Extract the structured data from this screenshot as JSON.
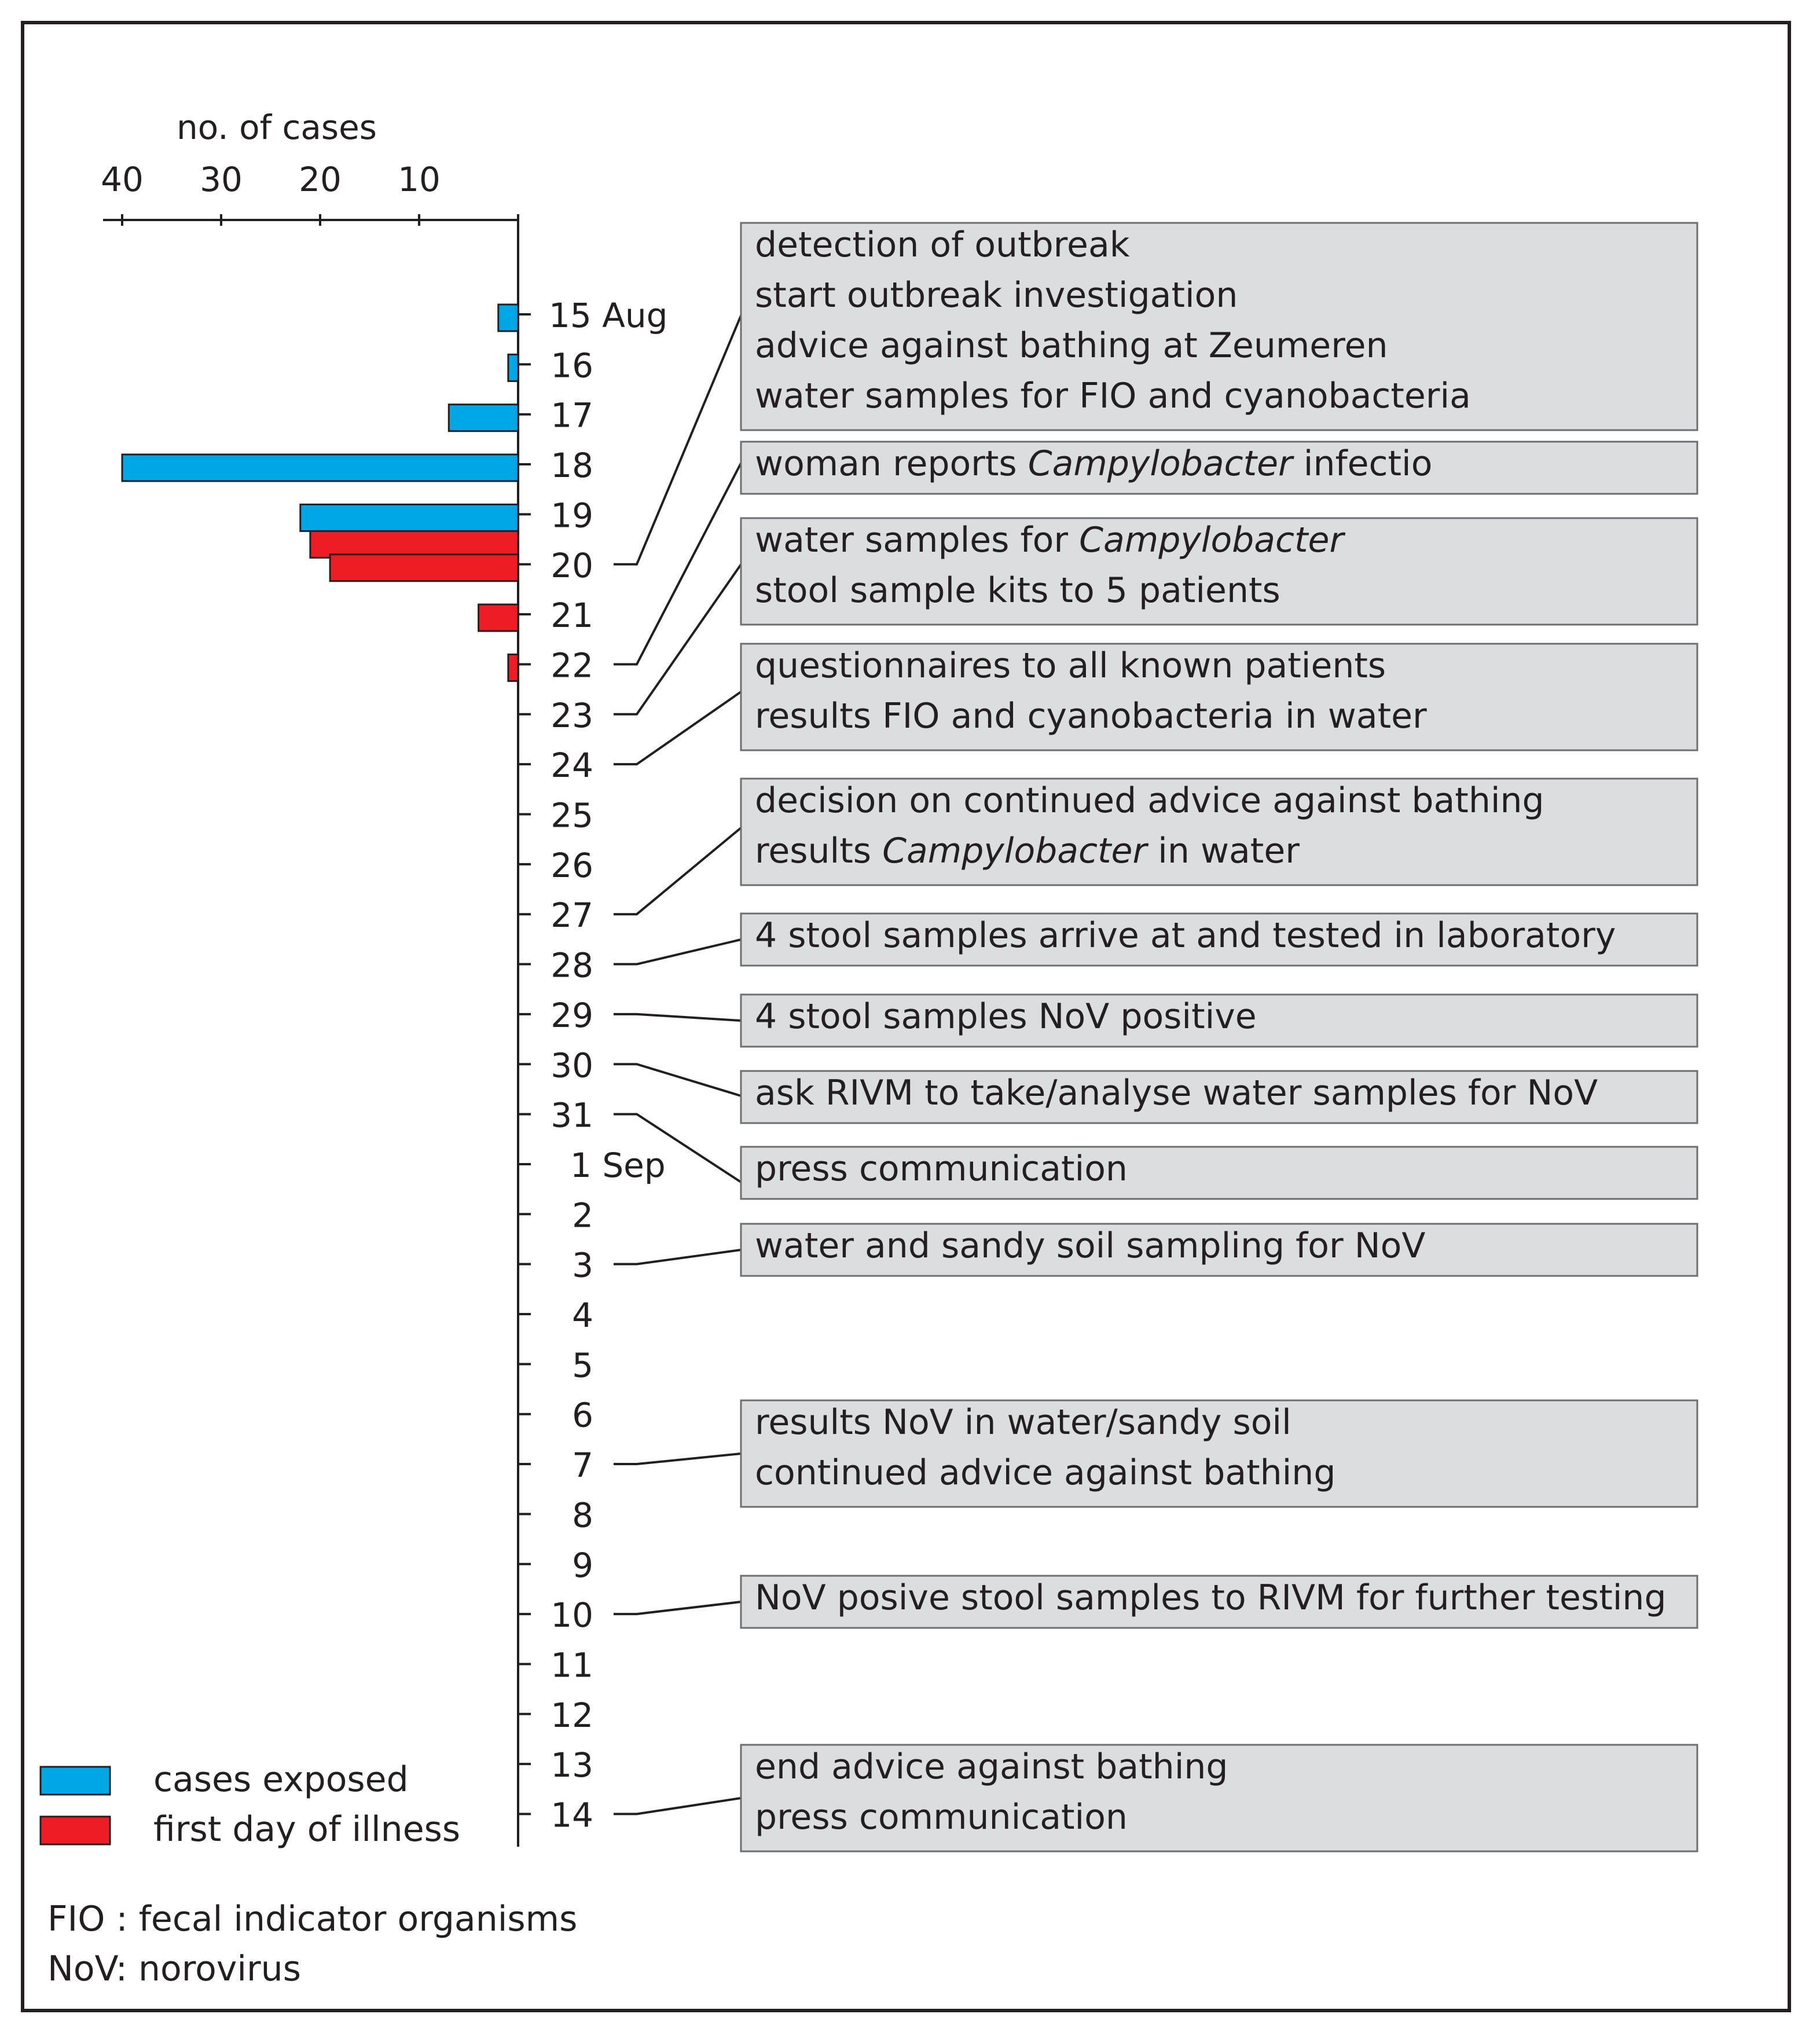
{
  "chart_data": {
    "type": "bar",
    "orientation": "horizontal",
    "xlabel": "no. of cases",
    "x_axis_direction": "reversed",
    "xlim": [
      0,
      42
    ],
    "xticks": [
      40,
      30,
      20,
      10
    ],
    "categories": [
      "15 Aug",
      "16",
      "17",
      "18",
      "19",
      "20",
      "21",
      "22",
      "23",
      "24",
      "25",
      "26",
      "27",
      "28",
      "29",
      "30",
      "31",
      "1 Sep",
      "2",
      "3",
      "4",
      "5",
      "6",
      "7",
      "8",
      "9",
      "10",
      "11",
      "12",
      "13",
      "14"
    ],
    "series": [
      {
        "name": "cases exposed",
        "color": "#00a7e6",
        "values": [
          2,
          1,
          7,
          40,
          22,
          0,
          0,
          0,
          0,
          0,
          0,
          0,
          0,
          0,
          0,
          0,
          0,
          0,
          0,
          0,
          0,
          0,
          0,
          0,
          0,
          0,
          0,
          0,
          0,
          0,
          0
        ]
      },
      {
        "name": "first day of illness",
        "color": "#ee1c25",
        "values": [
          0,
          0,
          0,
          0,
          21,
          19,
          4,
          1,
          0,
          0,
          0,
          0,
          0,
          0,
          0,
          0,
          0,
          0,
          0,
          0,
          0,
          0,
          0,
          0,
          0,
          0,
          0,
          0,
          0,
          0,
          0
        ]
      }
    ],
    "legend_position": "bottom-left",
    "events": [
      {
        "day_index": 5,
        "lines": [
          [
            {
              "t": "detection of outbreak"
            }
          ],
          [
            {
              "t": "start outbreak investigation"
            }
          ],
          [
            {
              "t": "advice against bathing at Zeumeren"
            }
          ],
          [
            {
              "t": "water samples for FIO and cyanobacteria"
            }
          ]
        ]
      },
      {
        "day_index": 7,
        "lines": [
          [
            {
              "t": "woman reports "
            },
            {
              "t": "Campylobacter",
              "i": true
            },
            {
              "t": " infectio"
            }
          ]
        ]
      },
      {
        "day_index": 8,
        "lines": [
          [
            {
              "t": "water samples for "
            },
            {
              "t": "Campylobacter",
              "i": true
            }
          ],
          [
            {
              "t": "stool sample kits to 5 patients"
            }
          ]
        ]
      },
      {
        "day_index": 9,
        "lines": [
          [
            {
              "t": "questionnaires to all known patients"
            }
          ],
          [
            {
              "t": "results FIO and cyanobacteria in water"
            }
          ]
        ]
      },
      {
        "day_index": 12,
        "lines": [
          [
            {
              "t": "decision on continued advice against bathing"
            }
          ],
          [
            {
              "t": "results "
            },
            {
              "t": "Campylobacter",
              "i": true
            },
            {
              "t": " in water"
            }
          ]
        ]
      },
      {
        "day_index": 13,
        "lines": [
          [
            {
              "t": "4 stool samples arrive at and tested in laboratory"
            }
          ]
        ]
      },
      {
        "day_index": 14,
        "lines": [
          [
            {
              "t": "4 stool samples NoV positive"
            }
          ]
        ]
      },
      {
        "day_index": 15,
        "lines": [
          [
            {
              "t": "ask RIVM to take/analyse water samples for NoV"
            }
          ]
        ]
      },
      {
        "day_index": 16,
        "lines": [
          [
            {
              "t": "press communication"
            }
          ]
        ]
      },
      {
        "day_index": 19,
        "lines": [
          [
            {
              "t": "water and sandy soil sampling for NoV"
            }
          ]
        ]
      },
      {
        "day_index": 23,
        "lines": [
          [
            {
              "t": "results NoV in water/sandy soil"
            }
          ],
          [
            {
              "t": "continued advice against bathing"
            }
          ]
        ]
      },
      {
        "day_index": 26,
        "lines": [
          [
            {
              "t": "NoV posive stool samples to RIVM for further testing"
            }
          ]
        ]
      },
      {
        "day_index": 30,
        "lines": [
          [
            {
              "t": "end advice against bathing"
            }
          ],
          [
            {
              "t": "press communication"
            }
          ]
        ]
      }
    ],
    "footnotes": [
      "FIO  : fecal indicator organisms",
      "NoV: norovirus"
    ]
  }
}
